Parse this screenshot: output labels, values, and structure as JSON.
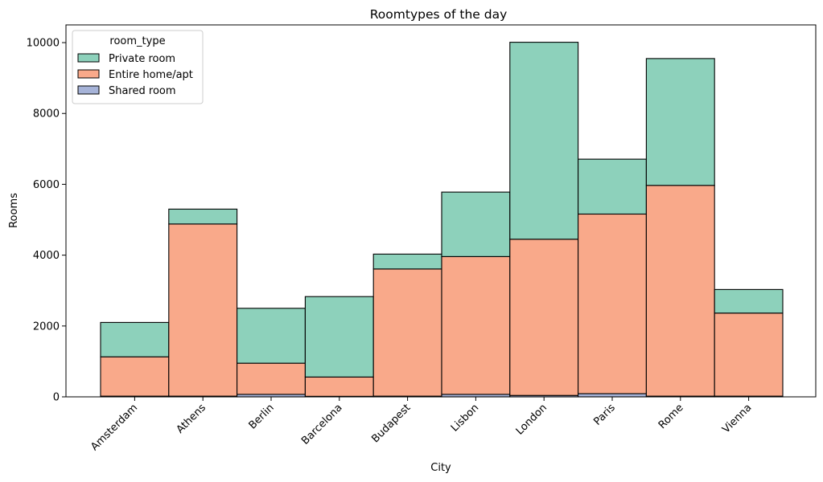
{
  "chart_data": {
    "type": "bar",
    "stacked": true,
    "title": "Roomtypes of the day",
    "xlabel": "City",
    "ylabel": "Rooms",
    "ylim": [
      0,
      10500
    ],
    "yticks": [
      0,
      2000,
      4000,
      6000,
      8000,
      10000
    ],
    "categories": [
      "Amsterdam",
      "Athens",
      "Berlin",
      "Barcelona",
      "Budapest",
      "Lisbon",
      "London",
      "Paris",
      "Rome",
      "Vienna"
    ],
    "series": [
      {
        "name": "Shared room",
        "color": "#a6b3d8",
        "values": [
          20,
          20,
          70,
          15,
          20,
          70,
          40,
          90,
          20,
          20
        ]
      },
      {
        "name": "Entire home/apt",
        "color": "#f9a98a",
        "values": [
          1110,
          4860,
          880,
          545,
          3590,
          3890,
          4410,
          5070,
          5950,
          2345
        ]
      },
      {
        "name": "Private room",
        "color": "#8dd1bb",
        "values": [
          970,
          420,
          1550,
          2270,
          420,
          1820,
          5560,
          1550,
          3580,
          665
        ]
      }
    ],
    "legend": {
      "title": "room_type",
      "position": "top-left",
      "order": [
        "Private room",
        "Entire home/apt",
        "Shared room"
      ]
    }
  }
}
